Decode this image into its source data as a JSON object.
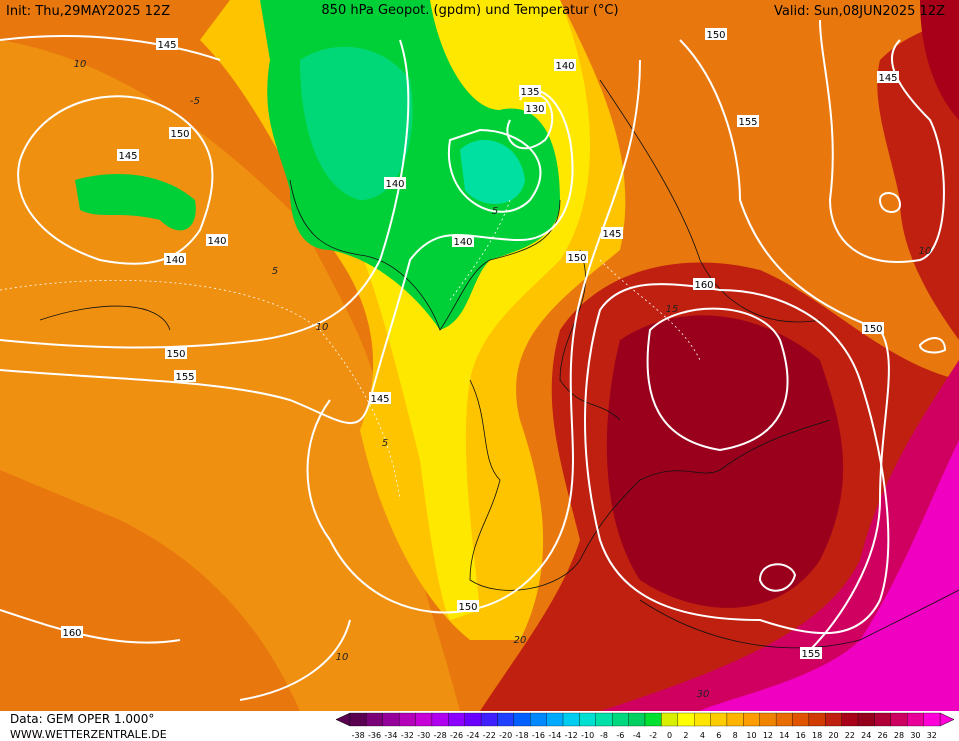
{
  "header": {
    "init": "Init: Thu,29MAY2025 12Z",
    "title": "850 hPa Geopot. (gpdm) und Temperatur (°C)",
    "valid": "Valid: Sun,08JUN2025 12Z"
  },
  "footer": {
    "data": "Data: GEM OPER 1.000°",
    "site": "WWW.WETTERZENTRALE.DE"
  },
  "geopotential_labels": [
    145,
    150,
    145,
    140,
    140,
    150,
    155,
    145,
    140,
    140,
    140,
    135,
    130,
    150,
    145,
    155,
    145,
    150,
    160,
    150,
    150,
    160,
    155
  ],
  "temperature_labels": [
    10,
    -5,
    5,
    10,
    5,
    5,
    10,
    15,
    20,
    10,
    30
  ],
  "colorbar": {
    "labels": [
      -38,
      -36,
      -34,
      -32,
      -30,
      -28,
      -26,
      -24,
      -22,
      -20,
      -18,
      -16,
      -14,
      -12,
      -10,
      -8,
      -6,
      -4,
      -2,
      0,
      2,
      4,
      6,
      8,
      10,
      12,
      14,
      16,
      18,
      20,
      22,
      24,
      26,
      28,
      30,
      32
    ],
    "colors": [
      "#5a0050",
      "#7a0078",
      "#96009a",
      "#b400b8",
      "#c800d8",
      "#b000f0",
      "#8c00ff",
      "#6a00ff",
      "#4020ff",
      "#2040ff",
      "#0060ff",
      "#0088ff",
      "#00aaff",
      "#00ccf0",
      "#00e0d0",
      "#00e0a8",
      "#00d880",
      "#00d060",
      "#00e030",
      "#d8f000",
      "#ffff00",
      "#ffe400",
      "#ffcc00",
      "#ffb400",
      "#ff9c00",
      "#f08400",
      "#e86c00",
      "#e05400",
      "#d03c00",
      "#c02010",
      "#a80018",
      "#94001c",
      "#b00038",
      "#cc0060",
      "#e80098",
      "#ff00d8"
    ]
  }
}
